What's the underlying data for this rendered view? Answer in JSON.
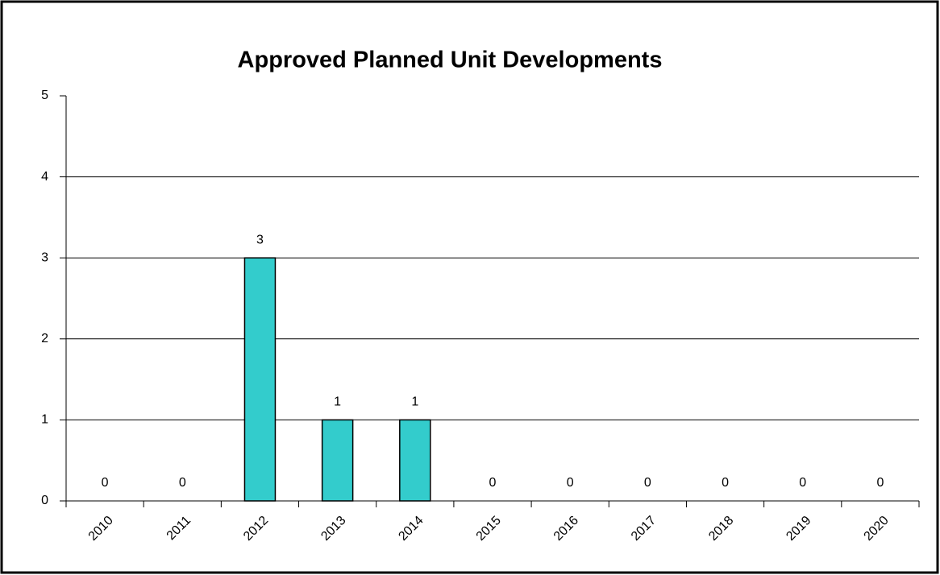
{
  "chart_data": {
    "type": "bar",
    "title": "Approved Planned Unit Developments",
    "categories": [
      "2010",
      "2011",
      "2012",
      "2013",
      "2014",
      "2015",
      "2016",
      "2017",
      "2018",
      "2019",
      "2020"
    ],
    "values": [
      0,
      0,
      3,
      1,
      1,
      0,
      0,
      0,
      0,
      0,
      0
    ],
    "color": "#33cccc",
    "ylim": [
      0,
      5
    ],
    "yticks": [
      0,
      1,
      2,
      3,
      4,
      5
    ],
    "grid": true
  }
}
